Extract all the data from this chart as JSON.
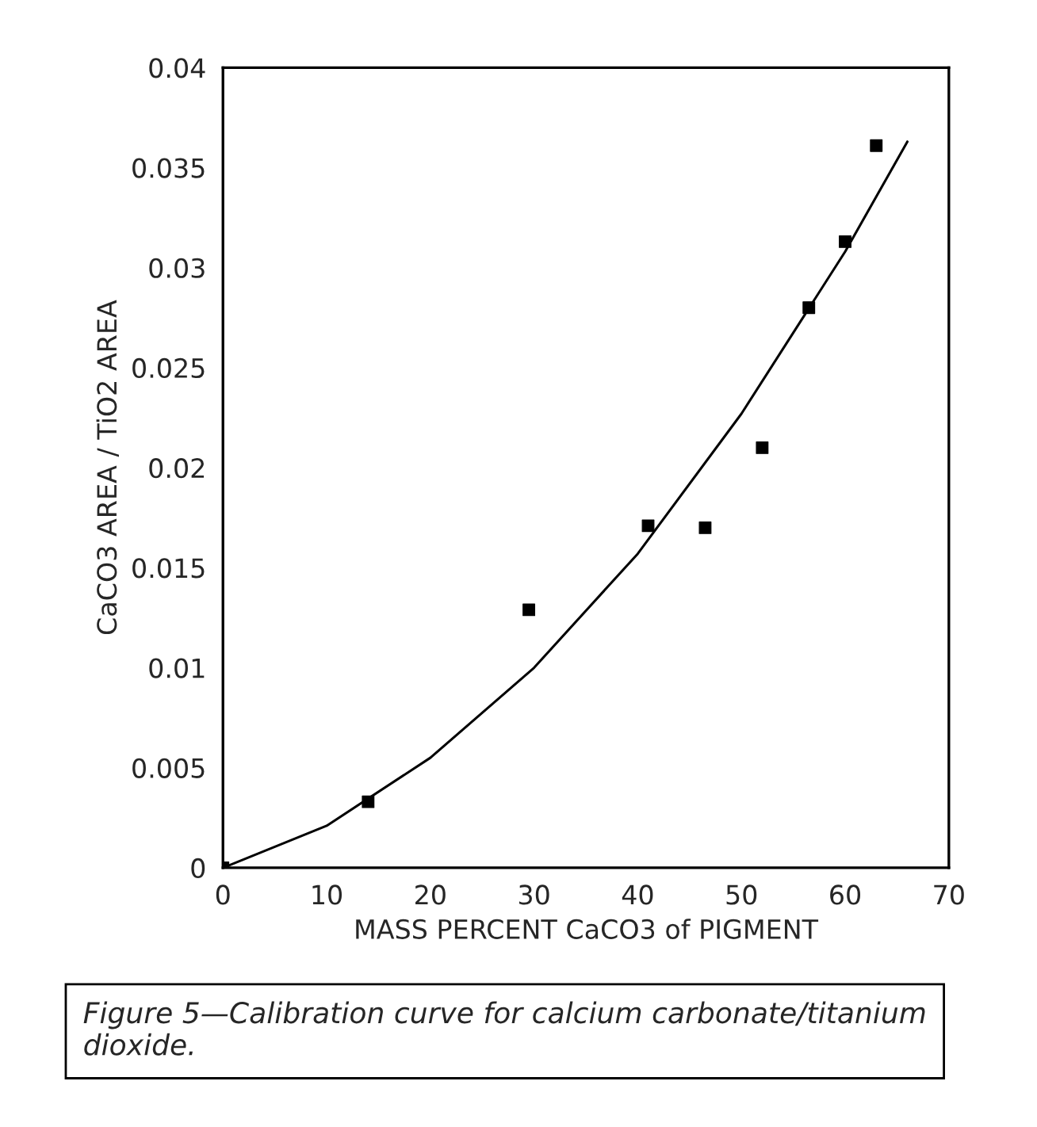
{
  "chart_data": {
    "type": "scatter",
    "xlabel": "MASS PERCENT CaCO3 of PIGMENT",
    "ylabel": "CaCO3 AREA / TiO2 AREA",
    "annotations": [
      "Figure 5—Calibration curve for calcium carbonate/titanium dioxide."
    ],
    "x": [
      0,
      14,
      29.5,
      41,
      46.5,
      52,
      56.5,
      60,
      63
    ],
    "series": [
      {
        "color": "#000000",
        "marker": "square",
        "values": [
          0,
          0.0033,
          0.0129,
          0.0171,
          0.017,
          0.021,
          0.028,
          0.0313,
          0.0361
        ]
      },
      {
        "type": "line",
        "color": "#000000",
        "marker": "none",
        "line_style": "solid",
        "x": [
          0,
          10,
          20,
          30,
          40,
          50,
          60,
          66
        ],
        "values": [
          0,
          0.0021,
          0.0055,
          0.01,
          0.0157,
          0.0227,
          0.0308,
          0.0363
        ]
      }
    ],
    "xlim": [
      0,
      70
    ],
    "xticks": [
      0,
      10,
      20,
      30,
      40,
      50,
      60,
      70
    ],
    "ylim": [
      0,
      0.04
    ],
    "yticks": [
      0,
      0.005,
      0.01,
      0.015,
      0.02,
      0.025,
      0.03,
      0.035,
      0.04
    ],
    "grid": false,
    "legend": false
  }
}
